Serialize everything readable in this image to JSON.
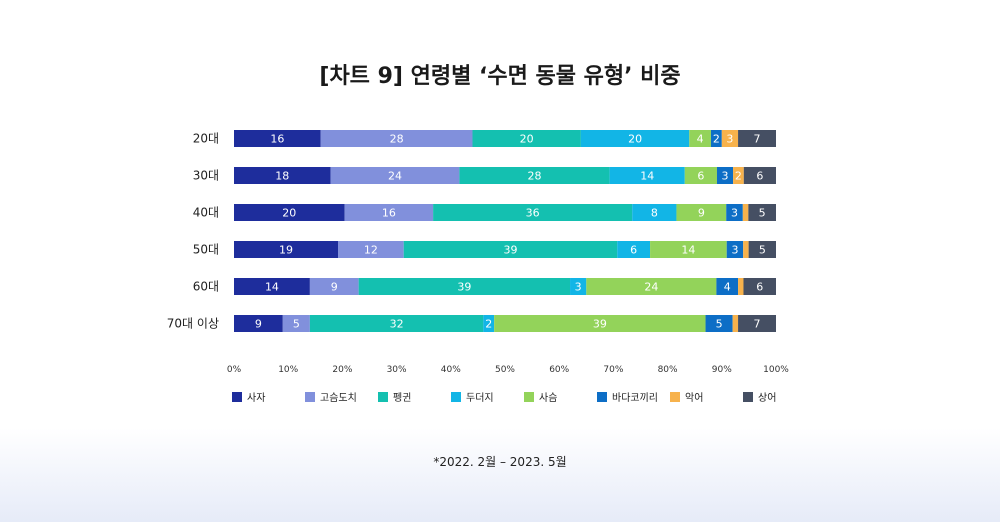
{
  "chart_data": {
    "type": "bar",
    "orientation": "horizontal-stacked-100",
    "title": "[차트 9] 연령별 ‘수면 동물 유형’ 비중",
    "categories": [
      "20대",
      "30대",
      "40대",
      "50대",
      "60대",
      "70대 이상"
    ],
    "series": [
      {
        "name": "사자",
        "color": "#1e2d9c",
        "values": [
          16,
          18,
          20,
          19,
          14,
          9
        ]
      },
      {
        "name": "고슴도치",
        "color": "#8190dc",
        "values": [
          28,
          24,
          16,
          12,
          9,
          5
        ]
      },
      {
        "name": "펭귄",
        "color": "#14c0b0",
        "values": [
          20,
          28,
          36,
          39,
          39,
          32
        ]
      },
      {
        "name": "두더지",
        "color": "#12b5e6",
        "values": [
          20,
          14,
          8,
          6,
          3,
          2
        ]
      },
      {
        "name": "사슴",
        "color": "#93d35a",
        "values": [
          4,
          6,
          9,
          14,
          24,
          39
        ]
      },
      {
        "name": "바다코끼리",
        "color": "#0d6ec6",
        "values": [
          2,
          3,
          3,
          3,
          4,
          5
        ]
      },
      {
        "name": "악어",
        "color": "#f7b24c",
        "values": [
          3,
          2,
          1,
          1,
          1,
          1
        ]
      },
      {
        "name": "상어",
        "color": "#454f63",
        "values": [
          7,
          6,
          5,
          5,
          6,
          7
        ]
      }
    ],
    "value_labels": [
      [
        "16",
        "28",
        "20",
        "20",
        "4",
        "2",
        "3",
        "7"
      ],
      [
        "18",
        "24",
        "28",
        "14",
        "6",
        "3",
        "2",
        "6"
      ],
      [
        "20",
        "16",
        "36",
        "8",
        "9",
        "3",
        "",
        "5"
      ],
      [
        "19",
        "12",
        "39",
        "6",
        "14",
        "3",
        "",
        "5"
      ],
      [
        "14",
        "9",
        "39",
        "3",
        "24",
        "4",
        "",
        "6"
      ],
      [
        "9",
        "5",
        "32",
        "2",
        "39",
        "5",
        "",
        "7"
      ]
    ],
    "xlim": [
      0,
      100
    ],
    "xticks": [
      "0%",
      "10%",
      "20%",
      "30%",
      "40%",
      "50%",
      "60%",
      "70%",
      "80%",
      "90%",
      "100%"
    ],
    "legend_position": "bottom",
    "grid": false
  },
  "footnote": "*2022. 2월 – 2023. 5월"
}
